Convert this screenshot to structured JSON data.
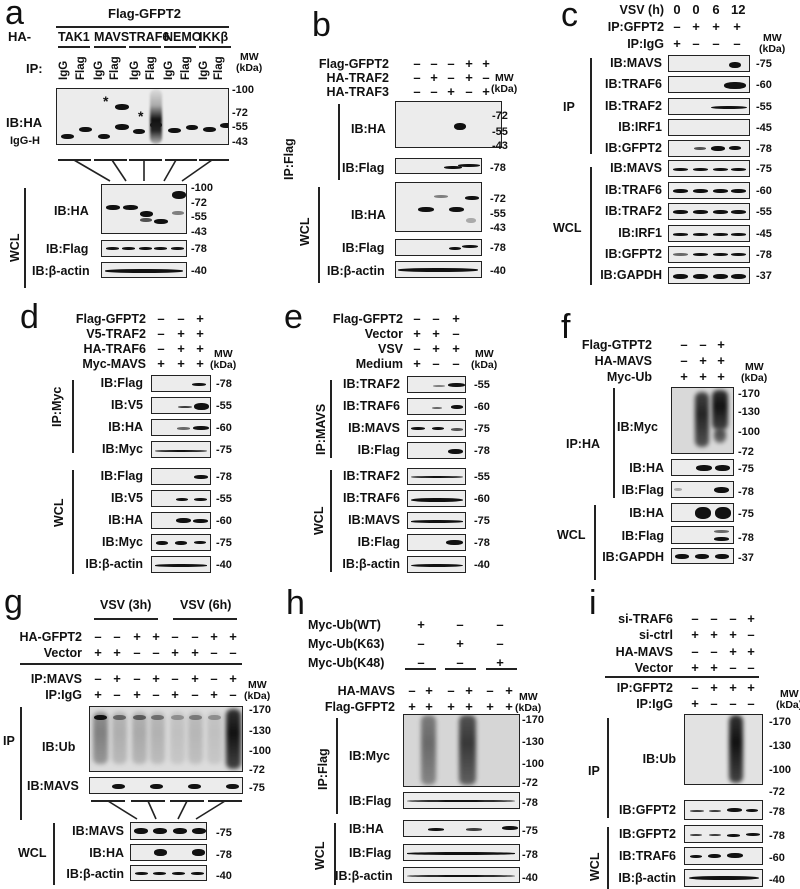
{
  "figure": {
    "panels": {
      "a": {
        "label": "a",
        "header": "Flag-GFPT2",
        "ha_prefix": "HA-",
        "groups": [
          "TAK1",
          "MAVS",
          "TRAF6",
          "NEMO",
          "IKKβ"
        ],
        "ip_label": "IP:",
        "ip_lanes": [
          "IgG",
          "Flag",
          "IgG",
          "Flag",
          "IgG",
          "Flag",
          "IgG",
          "Flag",
          "IgG",
          "Flag"
        ],
        "mw_header": "MW\n(kDa)",
        "mw_title": "MW",
        "mw_unit": "(kDa)",
        "ip_blot": {
          "label": "IB:HA",
          "igg_label": "IgG-H",
          "ticks": [
            "100",
            "72",
            "55",
            "43"
          ],
          "asterisk": "*"
        },
        "wcl_label": "WCL",
        "wcl_blots": [
          {
            "label": "IB:HA",
            "ticks": [
              "100",
              "72",
              "55",
              "43"
            ]
          },
          {
            "label": "IB:Flag",
            "ticks": [
              "78"
            ]
          },
          {
            "label": "IB:β-actin",
            "ticks": [
              "40"
            ]
          }
        ]
      },
      "b": {
        "label": "b",
        "conditions": [
          {
            "name": "Flag-GFPT2",
            "signs": [
              "–",
              "–",
              "–",
              "+",
              "+"
            ]
          },
          {
            "name": "HA-TRAF2",
            "signs": [
              "–",
              "+",
              "–",
              "+",
              "–"
            ]
          },
          {
            "name": "HA-TRAF3",
            "signs": [
              "–",
              "–",
              "+",
              "–",
              "+"
            ]
          }
        ],
        "mw_title": "MW",
        "mw_unit": "(kDa)",
        "ip_label": "IP:Flag",
        "ip_blots": [
          {
            "label": "IB:HA",
            "ticks": [
              "72",
              "55",
              "43"
            ]
          },
          {
            "label": "IB:Flag",
            "ticks": [
              "78"
            ]
          }
        ],
        "wcl_label": "WCL",
        "wcl_blots": [
          {
            "label": "IB:HA",
            "ticks": [
              "72",
              "55",
              "43"
            ]
          },
          {
            "label": "IB:Flag",
            "ticks": [
              "78"
            ]
          },
          {
            "label": "IB:β-actin",
            "ticks": [
              "40"
            ]
          }
        ]
      },
      "c": {
        "label": "c",
        "conditions": [
          {
            "name": "VSV (h)",
            "signs": [
              "0",
              "0",
              "6",
              "12"
            ]
          },
          {
            "name": "IP:GFPT2",
            "signs": [
              "–",
              "+",
              "+",
              "+"
            ]
          },
          {
            "name": "IP:IgG",
            "signs": [
              "+",
              "–",
              "–",
              "–"
            ]
          }
        ],
        "mw_title": "MW",
        "mw_unit": "(kDa)",
        "ip_label": "IP",
        "ip_blots": [
          {
            "label": "IB:MAVS",
            "tick": "75"
          },
          {
            "label": "IB:TRAF6",
            "tick": "60"
          },
          {
            "label": "IB:TRAF2",
            "tick": "55"
          },
          {
            "label": "IB:IRF1",
            "tick": "45"
          },
          {
            "label": "IB:GFPT2",
            "tick": "78"
          }
        ],
        "wcl_label": "WCL",
        "wcl_blots": [
          {
            "label": "IB:MAVS",
            "tick": "75"
          },
          {
            "label": "IB:TRAF6",
            "tick": "60"
          },
          {
            "label": "IB:TRAF2",
            "tick": "55"
          },
          {
            "label": "IB:IRF1",
            "tick": "45"
          },
          {
            "label": "IB:GFPT2",
            "tick": "78"
          },
          {
            "label": "IB:GAPDH",
            "tick": "37"
          }
        ]
      },
      "d": {
        "label": "d",
        "conditions": [
          {
            "name": "Flag-GFPT2",
            "signs": [
              "–",
              "–",
              "+"
            ]
          },
          {
            "name": "V5-TRAF2",
            "signs": [
              "–",
              "+",
              "+"
            ]
          },
          {
            "name": "HA-TRAF6",
            "signs": [
              "–",
              "+",
              "+"
            ]
          },
          {
            "name": "Myc-MAVS",
            "signs": [
              "+",
              "+",
              "+"
            ]
          }
        ],
        "mw_title": "MW",
        "mw_unit": "(kDa)",
        "ip_label": "IP:Myc",
        "ip_blots": [
          {
            "label": "IB:Flag",
            "tick": "78"
          },
          {
            "label": "IB:V5",
            "tick": "55"
          },
          {
            "label": "IB:HA",
            "tick": "60"
          },
          {
            "label": "IB:Myc",
            "tick": "75"
          }
        ],
        "wcl_label": "WCL",
        "wcl_blots": [
          {
            "label": "IB:Flag",
            "tick": "78"
          },
          {
            "label": "IB:V5",
            "tick": "55"
          },
          {
            "label": "IB:HA",
            "tick": "60"
          },
          {
            "label": "IB:Myc",
            "tick": "75"
          },
          {
            "label": "IB:β-actin",
            "tick": "40"
          }
        ]
      },
      "e": {
        "label": "e",
        "conditions": [
          {
            "name": "Flag-GFPT2",
            "signs": [
              "–",
              "–",
              "+"
            ]
          },
          {
            "name": "Vector",
            "signs": [
              "+",
              "+",
              "–"
            ]
          },
          {
            "name": "VSV",
            "signs": [
              "–",
              "+",
              "+"
            ]
          },
          {
            "name": "Medium",
            "signs": [
              "+",
              "–",
              "–"
            ]
          }
        ],
        "mw_title": "MW",
        "mw_unit": "(kDa)",
        "ip_label": "IP:MAVS",
        "ip_blots": [
          {
            "label": "IB:TRAF2",
            "tick": "55"
          },
          {
            "label": "IB:TRAF6",
            "tick": "60"
          },
          {
            "label": "IB:MAVS",
            "tick": "75"
          },
          {
            "label": "IB:Flag",
            "tick": "78"
          }
        ],
        "wcl_label": "WCL",
        "wcl_blots": [
          {
            "label": "IB:TRAF2",
            "tick": "55"
          },
          {
            "label": "IB:TRAF6",
            "tick": "60"
          },
          {
            "label": "IB:MAVS",
            "tick": "75"
          },
          {
            "label": "IB:Flag",
            "tick": "78"
          },
          {
            "label": "IB:β-actin",
            "tick": "40"
          }
        ]
      },
      "f": {
        "label": "f",
        "conditions": [
          {
            "name": "Flag-GTPT2",
            "signs": [
              "–",
              "–",
              "+"
            ]
          },
          {
            "name": "HA-MAVS",
            "signs": [
              "–",
              "+",
              "+"
            ]
          },
          {
            "name": "Myc-Ub",
            "signs": [
              "+",
              "+",
              "+"
            ]
          }
        ],
        "mw_title": "MW",
        "mw_unit": "(kDa)",
        "ip_label": "IP:HA",
        "ip_blots": [
          {
            "label": "IB:Myc",
            "ticks": [
              "170",
              "130",
              "100",
              "72"
            ]
          },
          {
            "label": "IB:HA",
            "tick": "75"
          },
          {
            "label": "IB:Flag",
            "tick": "78"
          }
        ],
        "wcl_label": "WCL",
        "wcl_blots": [
          {
            "label": "IB:HA",
            "tick": "75"
          },
          {
            "label": "IB:Flag",
            "tick": "78"
          },
          {
            "label": "IB:GAPDH",
            "tick": "37"
          }
        ]
      },
      "g": {
        "label": "g",
        "groups": [
          "VSV (3h)",
          "VSV (6h)"
        ],
        "conditions": [
          {
            "name": "HA-GFPT2",
            "signs": [
              "–",
              "–",
              "+",
              "+",
              "–",
              "–",
              "+",
              "+"
            ]
          },
          {
            "name": "Vector",
            "signs": [
              "+",
              "+",
              "–",
              "–",
              "+",
              "+",
              "–",
              "–"
            ]
          },
          {
            "name": "IP:MAVS",
            "signs": [
              "–",
              "+",
              "–",
              "+",
              "–",
              "+",
              "–",
              "+"
            ]
          },
          {
            "name": "IP:IgG",
            "signs": [
              "+",
              "–",
              "+",
              "–",
              "+",
              "–",
              "+",
              "–"
            ]
          }
        ],
        "mw_title": "MW",
        "mw_unit": "(kDa)",
        "ip_label": "IP",
        "ip_blots": [
          {
            "label": "IB:Ub",
            "ticks": [
              "170",
              "130",
              "100",
              "72"
            ]
          },
          {
            "label": "IB:MAVS",
            "tick": "75"
          }
        ],
        "wcl_label": "WCL",
        "wcl_blots": [
          {
            "label": "IB:MAVS",
            "tick": "75"
          },
          {
            "label": "IB:HA",
            "tick": "78"
          },
          {
            "label": "IB:β-actin",
            "tick": "40"
          }
        ]
      },
      "h": {
        "label": "h",
        "ub_conditions": [
          {
            "name": "Myc-Ub(WT)",
            "signs": [
              "+",
              "–",
              "–"
            ]
          },
          {
            "name": "Myc-Ub(K63)",
            "signs": [
              "–",
              "+",
              "–"
            ]
          },
          {
            "name": "Myc-Ub(K48)",
            "signs": [
              "–",
              "–",
              "+"
            ]
          }
        ],
        "conditions": [
          {
            "name": "HA-MAVS",
            "signs": [
              "–",
              "+",
              "–",
              "+",
              "–",
              "+"
            ]
          },
          {
            "name": "Flag-GFPT2",
            "signs": [
              "+",
              "+",
              "+",
              "+",
              "+",
              "+"
            ]
          }
        ],
        "mw_title": "MW",
        "mw_unit": "(kDa)",
        "ip_label": "IP:Flag",
        "ip_blots": [
          {
            "label": "IB:Myc",
            "ticks": [
              "170",
              "130",
              "100",
              "72"
            ]
          },
          {
            "label": "IB:Flag",
            "tick": "78"
          }
        ],
        "wcl_label": "WCL",
        "wcl_blots": [
          {
            "label": "IB:HA",
            "tick": "75"
          },
          {
            "label": "IB:Flag",
            "tick": "78"
          },
          {
            "label": "IB:β-actin",
            "tick": "40"
          }
        ]
      },
      "i": {
        "label": "i",
        "conditions": [
          {
            "name": "si-TRAF6",
            "signs": [
              "–",
              "–",
              "–",
              "+"
            ]
          },
          {
            "name": "si-ctrl",
            "signs": [
              "+",
              "+",
              "+",
              "–"
            ]
          },
          {
            "name": "HA-MAVS",
            "signs": [
              "–",
              "–",
              "+",
              "+"
            ]
          },
          {
            "name": "Vector",
            "signs": [
              "+",
              "+",
              "–",
              "–"
            ]
          },
          {
            "name": "IP:GFPT2",
            "signs": [
              "–",
              "+",
              "+",
              "+"
            ]
          },
          {
            "name": "IP:IgG",
            "signs": [
              "+",
              "–",
              "–",
              "–"
            ]
          }
        ],
        "mw_title": "MW",
        "mw_unit": "(kDa)",
        "ip_label": "IP",
        "ip_blots": [
          {
            "label": "IB:Ub",
            "ticks": [
              "170",
              "130",
              "100",
              "72"
            ]
          },
          {
            "label": "IB:GFPT2",
            "tick": "78"
          }
        ],
        "wcl_label": "WCL",
        "wcl_blots": [
          {
            "label": "IB:GFPT2",
            "tick": "78"
          },
          {
            "label": "IB:TRAF6",
            "tick": "60"
          },
          {
            "label": "IB:β-actin",
            "tick": "40"
          }
        ]
      }
    }
  }
}
